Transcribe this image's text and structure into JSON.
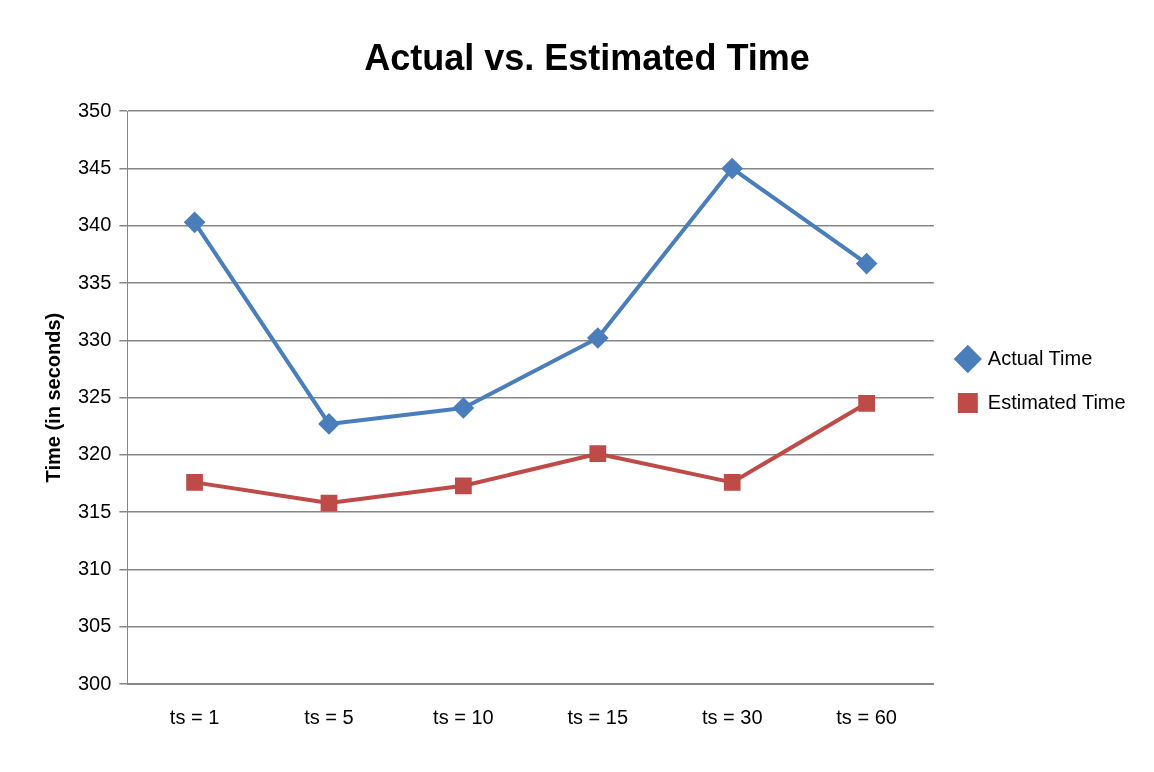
{
  "chart_data": {
    "type": "line",
    "title": "Actual vs. Estimated Time",
    "ylabel": "Time (in seconds)",
    "categories": [
      "ts = 1",
      "ts = 5",
      "ts = 10",
      "ts = 15",
      "ts = 30",
      "ts = 60"
    ],
    "series": [
      {
        "name": "Actual Time",
        "color": "#4a7ebb",
        "marker": "diamond",
        "values": [
          340.3,
          322.7,
          324.1,
          330.2,
          345.0,
          336.7
        ]
      },
      {
        "name": "Estimated Time",
        "color": "#be4b48",
        "marker": "square",
        "values": [
          317.6,
          315.8,
          317.3,
          320.1,
          317.6,
          324.5
        ]
      }
    ],
    "ylim": [
      300,
      350
    ],
    "yticks": [
      300,
      305,
      310,
      315,
      320,
      325,
      330,
      335,
      340,
      345,
      350
    ],
    "grid": "y",
    "legend": "right",
    "line_style": "solid"
  }
}
